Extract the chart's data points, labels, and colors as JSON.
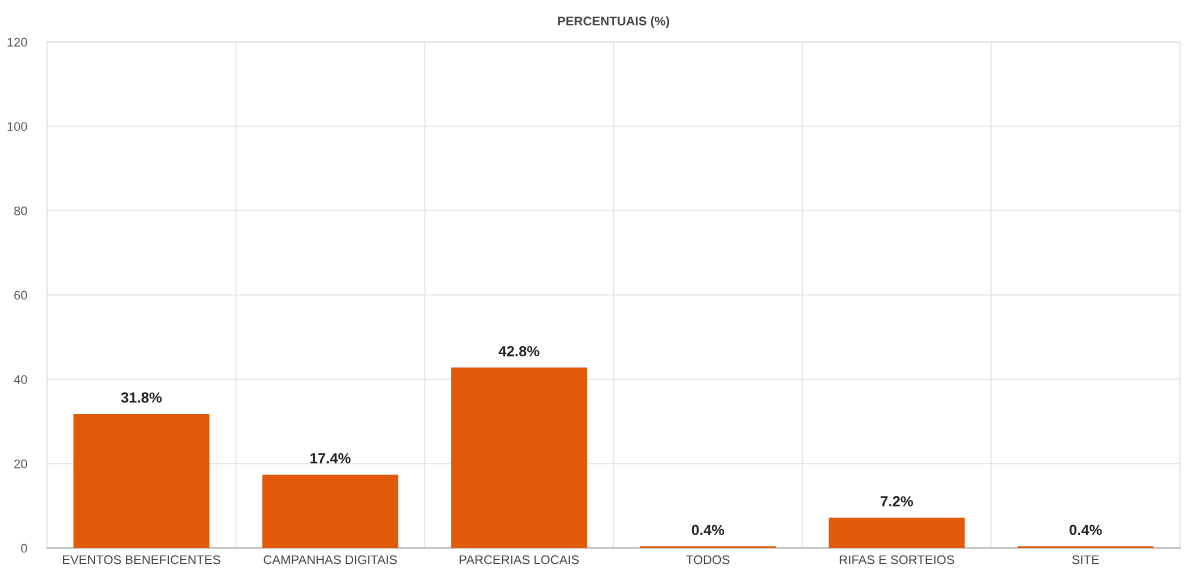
{
  "chart_data": {
    "type": "bar",
    "title": "PERCENTUAIS (%)",
    "categories": [
      "EVENTOS BENEFICENTES",
      "CAMPANHAS DIGITAIS",
      "PARCERIAS LOCAIS",
      "TODOS",
      "RIFAS E SORTEIOS",
      "SITE"
    ],
    "values": [
      31.8,
      17.4,
      42.8,
      0.4,
      7.2,
      0.4
    ],
    "value_labels": [
      "31.8%",
      "17.4%",
      "42.8%",
      "0.4%",
      "7.2%",
      "0.4%"
    ],
    "color": "#e05a0a",
    "ylim": [
      0,
      120
    ],
    "yticks": [
      0,
      20,
      40,
      60,
      80,
      100,
      120
    ],
    "grid": true
  }
}
